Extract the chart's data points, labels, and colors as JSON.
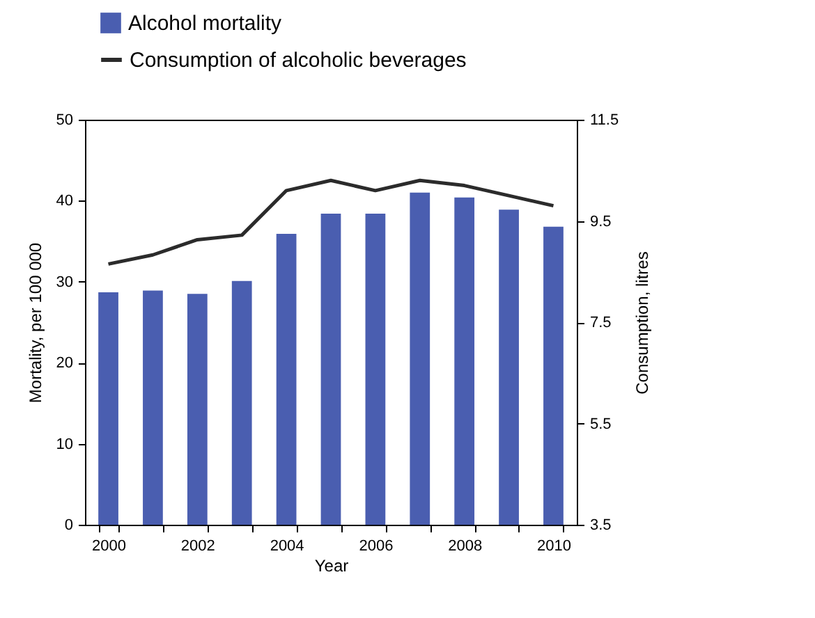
{
  "chart_data": {
    "type": "bar",
    "xlabel": "Year",
    "ylabel": "Mortality, per 100 000",
    "y2label": "Consumption, litres",
    "categories": [
      "2000",
      null,
      "2002",
      null,
      "2004",
      null,
      "2006",
      null,
      "2008",
      null,
      "2010"
    ],
    "series": [
      {
        "name": "Alcohol mortality",
        "color": "#4a5eb0",
        "values": [
          28.7,
          28.9,
          28.5,
          30.1,
          35.9,
          38.4,
          38.4,
          41.0,
          40.4,
          38.9,
          36.8
        ]
      },
      {
        "name": "Consumption of alcoholic beverages",
        "type": "line",
        "axis": "y2",
        "color": "#2b2b2b",
        "values": [
          8.65,
          8.83,
          9.13,
          9.22,
          10.1,
          10.3,
          10.1,
          10.3,
          10.2,
          10.0,
          9.8
        ]
      }
    ],
    "ylim": [
      0,
      50
    ],
    "yticks": [
      0,
      10,
      20,
      30,
      40,
      50
    ],
    "y2lim": [
      3.5,
      11.5
    ],
    "y2ticks": [
      3.5,
      5.5,
      7.5,
      9.5,
      11.5
    ],
    "grid": false,
    "legend": "top left"
  }
}
